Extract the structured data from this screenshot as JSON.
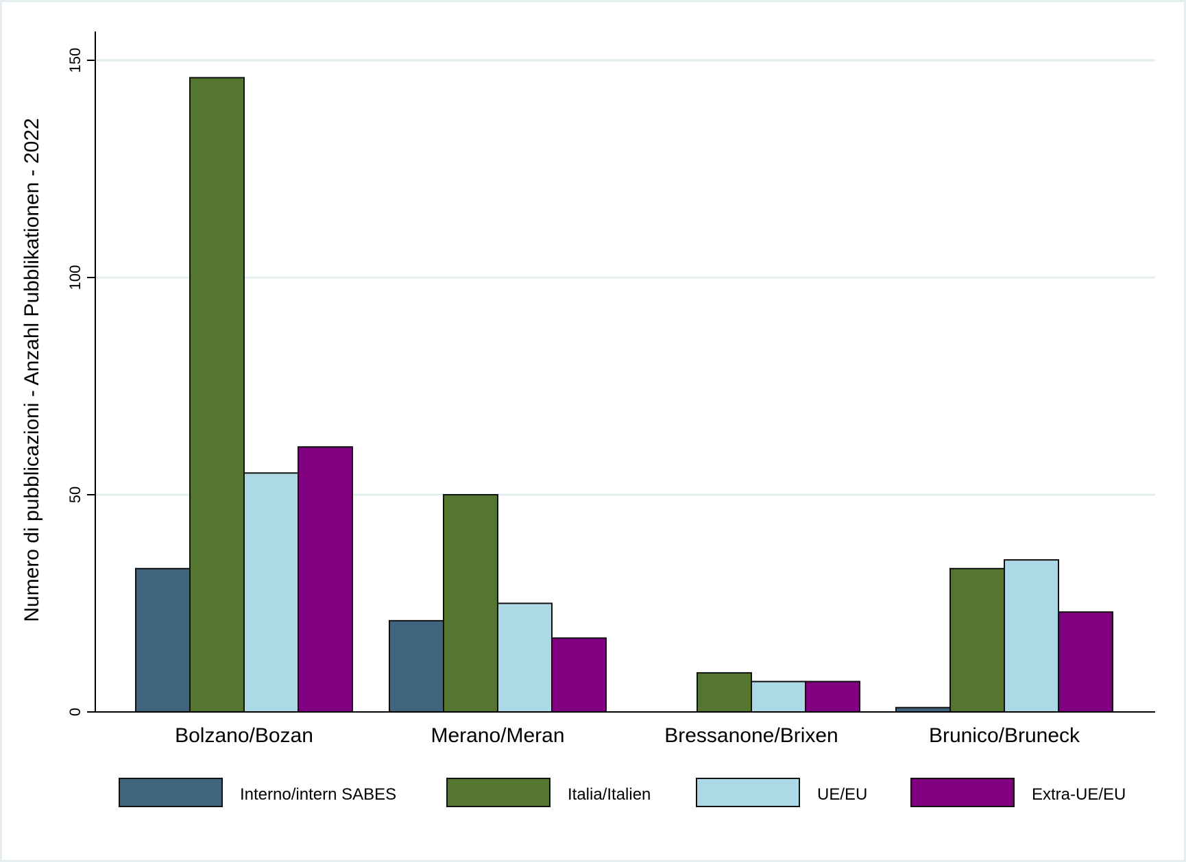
{
  "chart_data": {
    "type": "bar",
    "title": "",
    "xlabel": "",
    "ylabel": "Numero di pubblicazioni - Anzahl Pubblikationen - 2022",
    "ylim": [
      0,
      160
    ],
    "yticks": [
      0,
      50,
      100,
      150
    ],
    "grid": true,
    "legend_position": "bottom",
    "categories": [
      "Bolzano/Bozan",
      "Merano/Meran",
      "Bressanone/Brixen",
      "Brunico/Bruneck"
    ],
    "series": [
      {
        "name": "Interno/intern SABES",
        "color": "#41647e",
        "values": [
          33,
          21,
          0,
          1
        ]
      },
      {
        "name": "Italia/Italien",
        "color": "#557630",
        "values": [
          146,
          50,
          9,
          33
        ]
      },
      {
        "name": "UE/EU",
        "color": "#add8e6",
        "values": [
          55,
          25,
          7,
          35
        ]
      },
      {
        "name": "Extra-UE/EU",
        "color": "#800080",
        "values": [
          61,
          17,
          7,
          23
        ]
      }
    ]
  }
}
